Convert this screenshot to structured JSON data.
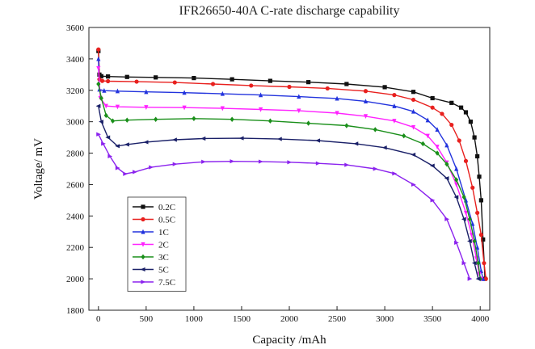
{
  "chart_data": {
    "type": "line",
    "title": "IFR26650-40A C-rate discharge capability",
    "xlabel": "Capacity /mAh",
    "ylabel": "Voltage/ mV",
    "xlim": [
      -100,
      4100
    ],
    "ylim": [
      1800,
      3600
    ],
    "xticks": [
      0,
      500,
      1000,
      1500,
      2000,
      2500,
      3000,
      3500,
      4000
    ],
    "yticks": [
      1800,
      2000,
      2200,
      2400,
      2600,
      2800,
      3000,
      3200,
      3400,
      3600
    ],
    "grid": false,
    "legend_position": "bottom-left",
    "series": [
      {
        "name": "0.2C",
        "color": "#111111",
        "marker": "square",
        "points": [
          [
            0,
            3450
          ],
          [
            10,
            3300
          ],
          [
            30,
            3290
          ],
          [
            100,
            3288
          ],
          [
            300,
            3285
          ],
          [
            600,
            3282
          ],
          [
            1000,
            3278
          ],
          [
            1400,
            3270
          ],
          [
            1800,
            3260
          ],
          [
            2200,
            3252
          ],
          [
            2600,
            3240
          ],
          [
            3000,
            3220
          ],
          [
            3300,
            3190
          ],
          [
            3500,
            3150
          ],
          [
            3700,
            3120
          ],
          [
            3800,
            3090
          ],
          [
            3850,
            3060
          ],
          [
            3900,
            3000
          ],
          [
            3940,
            2900
          ],
          [
            3970,
            2780
          ],
          [
            3990,
            2650
          ],
          [
            4010,
            2500
          ],
          [
            4030,
            2250
          ],
          [
            4050,
            2000
          ]
        ]
      },
      {
        "name": "0.5C",
        "color": "#e8201e",
        "marker": "circle",
        "points": [
          [
            0,
            3460
          ],
          [
            10,
            3270
          ],
          [
            40,
            3260
          ],
          [
            100,
            3258
          ],
          [
            400,
            3255
          ],
          [
            800,
            3250
          ],
          [
            1200,
            3240
          ],
          [
            1600,
            3230
          ],
          [
            2000,
            3222
          ],
          [
            2400,
            3212
          ],
          [
            2800,
            3195
          ],
          [
            3100,
            3170
          ],
          [
            3300,
            3140
          ],
          [
            3500,
            3090
          ],
          [
            3600,
            3050
          ],
          [
            3700,
            2980
          ],
          [
            3780,
            2880
          ],
          [
            3850,
            2750
          ],
          [
            3920,
            2580
          ],
          [
            3970,
            2420
          ],
          [
            4010,
            2280
          ],
          [
            4040,
            2100
          ],
          [
            4060,
            2000
          ]
        ]
      },
      {
        "name": "1C",
        "color": "#2233dd",
        "marker": "triangle-up",
        "points": [
          [
            0,
            3400
          ],
          [
            10,
            3205
          ],
          [
            60,
            3198
          ],
          [
            200,
            3195
          ],
          [
            500,
            3190
          ],
          [
            900,
            3185
          ],
          [
            1300,
            3178
          ],
          [
            1700,
            3170
          ],
          [
            2100,
            3160
          ],
          [
            2500,
            3148
          ],
          [
            2800,
            3130
          ],
          [
            3100,
            3100
          ],
          [
            3300,
            3065
          ],
          [
            3450,
            3010
          ],
          [
            3550,
            2950
          ],
          [
            3650,
            2850
          ],
          [
            3750,
            2700
          ],
          [
            3850,
            2500
          ],
          [
            3920,
            2350
          ],
          [
            3970,
            2200
          ],
          [
            4010,
            2050
          ],
          [
            4030,
            2000
          ]
        ]
      },
      {
        "name": "2C",
        "color": "#ff22ff",
        "marker": "triangle-down",
        "points": [
          [
            0,
            3340
          ],
          [
            20,
            3150
          ],
          [
            80,
            3100
          ],
          [
            200,
            3095
          ],
          [
            500,
            3092
          ],
          [
            900,
            3090
          ],
          [
            1300,
            3085
          ],
          [
            1700,
            3078
          ],
          [
            2100,
            3070
          ],
          [
            2500,
            3055
          ],
          [
            2800,
            3035
          ],
          [
            3100,
            3005
          ],
          [
            3300,
            2965
          ],
          [
            3450,
            2910
          ],
          [
            3550,
            2840
          ],
          [
            3650,
            2740
          ],
          [
            3750,
            2600
          ],
          [
            3850,
            2420
          ],
          [
            3910,
            2280
          ],
          [
            3960,
            2130
          ],
          [
            3990,
            2030
          ],
          [
            4010,
            2000
          ]
        ]
      },
      {
        "name": "3C",
        "color": "#1a8f1a",
        "marker": "diamond",
        "points": [
          [
            0,
            3240
          ],
          [
            30,
            3150
          ],
          [
            80,
            3040
          ],
          [
            150,
            3005
          ],
          [
            300,
            3010
          ],
          [
            600,
            3015
          ],
          [
            1000,
            3020
          ],
          [
            1400,
            3015
          ],
          [
            1800,
            3005
          ],
          [
            2200,
            2990
          ],
          [
            2600,
            2975
          ],
          [
            2900,
            2950
          ],
          [
            3200,
            2910
          ],
          [
            3400,
            2860
          ],
          [
            3550,
            2800
          ],
          [
            3650,
            2730
          ],
          [
            3750,
            2630
          ],
          [
            3830,
            2520
          ],
          [
            3890,
            2380
          ],
          [
            3940,
            2240
          ],
          [
            3980,
            2100
          ],
          [
            4000,
            2000
          ]
        ]
      },
      {
        "name": "5C",
        "color": "#1a2068",
        "marker": "triangle-left",
        "points": [
          [
            0,
            3100
          ],
          [
            30,
            3000
          ],
          [
            100,
            2900
          ],
          [
            200,
            2845
          ],
          [
            300,
            2855
          ],
          [
            500,
            2870
          ],
          [
            800,
            2885
          ],
          [
            1100,
            2893
          ],
          [
            1500,
            2895
          ],
          [
            1900,
            2890
          ],
          [
            2300,
            2880
          ],
          [
            2700,
            2860
          ],
          [
            3000,
            2835
          ],
          [
            3300,
            2790
          ],
          [
            3500,
            2720
          ],
          [
            3650,
            2640
          ],
          [
            3750,
            2520
          ],
          [
            3830,
            2380
          ],
          [
            3890,
            2240
          ],
          [
            3940,
            2100
          ],
          [
            3980,
            2000
          ]
        ]
      },
      {
        "name": "7.5C",
        "color": "#8b22ee",
        "marker": "triangle-right",
        "points": [
          [
            0,
            2920
          ],
          [
            50,
            2860
          ],
          [
            120,
            2780
          ],
          [
            200,
            2705
          ],
          [
            280,
            2668
          ],
          [
            380,
            2680
          ],
          [
            550,
            2710
          ],
          [
            800,
            2730
          ],
          [
            1100,
            2745
          ],
          [
            1400,
            2748
          ],
          [
            1700,
            2746
          ],
          [
            2000,
            2742
          ],
          [
            2300,
            2735
          ],
          [
            2600,
            2725
          ],
          [
            2900,
            2700
          ],
          [
            3100,
            2670
          ],
          [
            3300,
            2600
          ],
          [
            3500,
            2500
          ],
          [
            3650,
            2380
          ],
          [
            3750,
            2230
          ],
          [
            3830,
            2100
          ],
          [
            3890,
            2000
          ]
        ]
      }
    ]
  }
}
